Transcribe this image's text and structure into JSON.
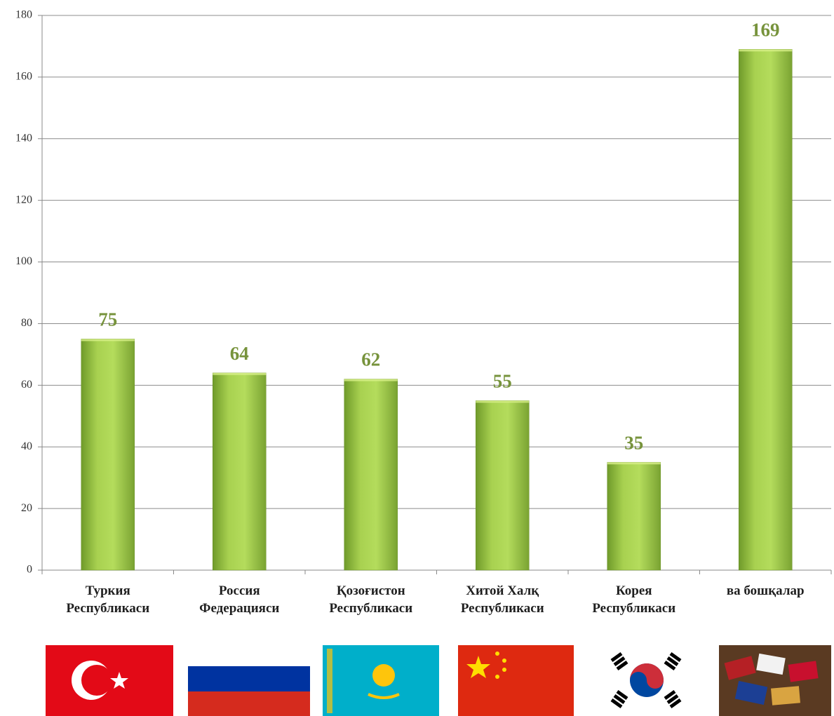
{
  "chart_data": {
    "type": "bar",
    "categories": [
      "Туркия\nРеспубликаси",
      "Россия\nФедерацияси",
      "Қозоғистон\nРеспубликаси",
      "Хитой Халқ\nРеспубликаси",
      "Корея\nРеспубликаси",
      "ва бошқалар"
    ],
    "values": [
      75,
      64,
      62,
      55,
      35,
      169
    ],
    "color": "#9bc847",
    "ylim": [
      0,
      180
    ],
    "yticks": [
      0,
      20,
      40,
      60,
      80,
      100,
      120,
      140,
      160,
      180
    ],
    "grid": true
  }
}
